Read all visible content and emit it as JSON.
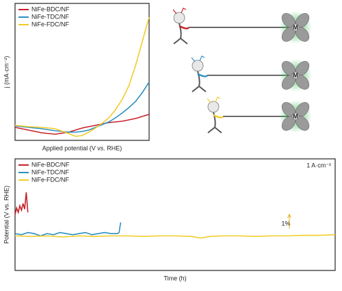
{
  "chart_data": [
    {
      "type": "line",
      "ylabel": "j (mA·cm⁻²)",
      "xlabel": "Applied potential (V vs. RHE)",
      "xlim": [
        0,
        100
      ],
      "ylim": [
        0,
        100
      ],
      "legend": "upper left",
      "x": [
        0,
        10,
        20,
        30,
        40,
        45,
        50,
        55,
        60,
        65,
        70,
        75,
        80,
        85,
        90,
        95,
        100
      ],
      "series": [
        {
          "name": "NiFe-BDC/NF",
          "color": "#c8202a",
          "values": [
            9.5,
            7.5,
            5.5,
            4.5,
            6,
            7.5,
            9,
            10,
            11,
            12,
            13,
            13.5,
            14,
            15,
            16,
            17.5,
            19
          ]
        },
        {
          "name": "NiFe-TDC/NF",
          "color": "#2b8fc0",
          "values": [
            10.5,
            9.5,
            8.5,
            7,
            6,
            6,
            6.5,
            7.5,
            9.5,
            11.5,
            13.5,
            16.5,
            20,
            24,
            28.5,
            35,
            42.5
          ]
        },
        {
          "name": "NiFe-FDC/NF",
          "color": "#f2cc2a",
          "values": [
            11,
            10,
            9.5,
            8.5,
            5,
            3,
            3.5,
            6,
            9,
            12.5,
            16.5,
            22.5,
            30,
            40,
            55,
            72.5,
            90
          ]
        }
      ]
    },
    {
      "type": "line",
      "ylabel": "Potential (V vs. RHE)",
      "xlabel": "Time (h)",
      "xlim": [
        0,
        100
      ],
      "ylim": [
        0,
        100
      ],
      "legend": "upper left",
      "annotations": [
        "1 A·cm⁻²",
        "1%"
      ],
      "series": [
        {
          "name": "NiFe-BDC/NF",
          "color": "#c8202a",
          "x": [
            0,
            0.5,
            1,
            1.5,
            2,
            2.5,
            3,
            3.5,
            4
          ],
          "values": [
            50,
            56,
            52,
            58,
            54,
            60,
            55,
            70,
            52
          ]
        },
        {
          "name": "NiFe-TDC/NF",
          "color": "#2b8fc0",
          "x": [
            0,
            2,
            4,
            6,
            8,
            10,
            12,
            14,
            16,
            18,
            20,
            22,
            24,
            26,
            28,
            30,
            32,
            32.5,
            33
          ],
          "values": [
            33,
            32,
            34,
            33,
            31,
            33,
            32,
            34,
            33,
            32,
            33,
            34,
            32,
            33,
            34,
            33,
            33,
            34,
            43
          ]
        },
        {
          "name": "NiFe-FDC/NF",
          "color": "#f2cc2a",
          "x": [
            0,
            5,
            10,
            15,
            20,
            25,
            30,
            35,
            40,
            45,
            50,
            55,
            58,
            61,
            65,
            70,
            75,
            80,
            85,
            90,
            95,
            100
          ],
          "values": [
            31,
            30.5,
            31,
            30,
            31,
            30.5,
            31,
            31,
            30.5,
            31,
            31,
            30.5,
            29,
            30.5,
            31,
            31,
            30.5,
            31,
            31,
            31.5,
            31.5,
            32
          ]
        }
      ]
    }
  ],
  "illustration": {
    "labels": [
      "M",
      "M",
      "M"
    ]
  }
}
